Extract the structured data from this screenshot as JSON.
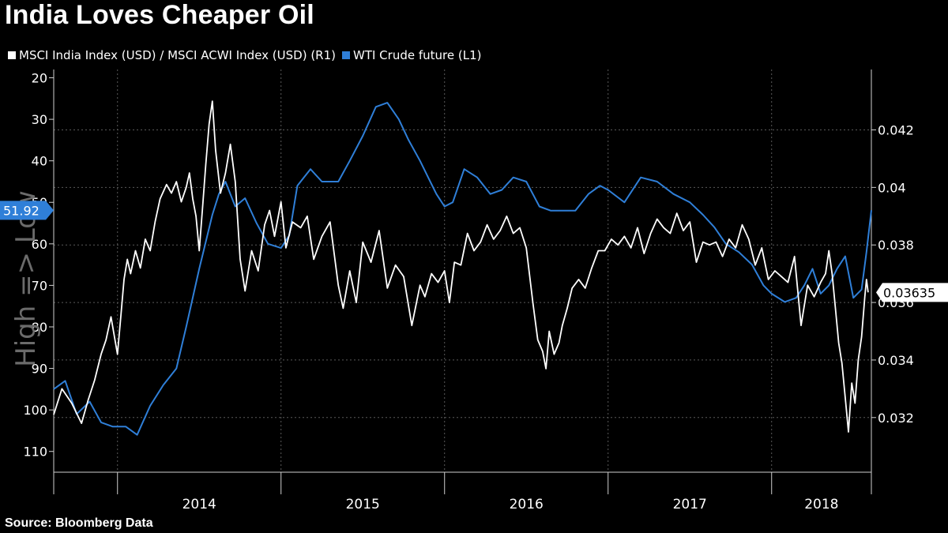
{
  "title": "India Loves Cheaper Oil",
  "source": "Source:  Bloomberg Data",
  "legend": [
    {
      "label": "MSCI India Index (USD) / MSCI ACWI Index (USD) (R1)",
      "color": "#ffffff"
    },
    {
      "label": "WTI Crude future (L1)",
      "color": "#2f7fd8"
    }
  ],
  "chart_data": {
    "type": "line",
    "title": "India Loves Cheaper Oil",
    "xlabel": "",
    "ylabel_left": "High => Low",
    "x_tick_labels": [
      "2014",
      "2015",
      "2016",
      "2017",
      "2018"
    ],
    "x_range": [
      2013.61,
      2018.61
    ],
    "left_axis": {
      "ticks": [
        "20",
        "30",
        "40",
        "50",
        "60",
        "70",
        "80",
        "90",
        "100",
        "110"
      ],
      "tick_values": [
        20,
        30,
        40,
        50,
        60,
        70,
        80,
        90,
        100,
        110
      ],
      "range": [
        18,
        115
      ],
      "inverted": true
    },
    "right_axis": {
      "ticks": [
        "0.032",
        "0.034",
        "0.036",
        "0.038",
        "0.04",
        "0.042"
      ],
      "tick_values": [
        0.032,
        0.034,
        0.036,
        0.038,
        0.04,
        0.042
      ],
      "range": [
        0.0301,
        0.0441
      ]
    },
    "last_value_labels": {
      "left": "51.92",
      "right": "0.03635"
    },
    "grid": true,
    "series": [
      {
        "name": "WTI Crude future (L1)",
        "axis": "left",
        "color": "#2f7fd8",
        "x": [
          2013.61,
          2013.68,
          2013.75,
          2013.83,
          2013.9,
          2013.97,
          2014.05,
          2014.12,
          2014.2,
          2014.28,
          2014.36,
          2014.42,
          2014.5,
          2014.58,
          2014.62,
          2014.66,
          2014.72,
          2014.78,
          2014.85,
          2014.92,
          2015.0,
          2015.05,
          2015.1,
          2015.18,
          2015.25,
          2015.3,
          2015.35,
          2015.42,
          2015.5,
          2015.58,
          2015.65,
          2015.72,
          2015.78,
          2015.85,
          2015.9,
          2015.95,
          2016.0,
          2016.05,
          2016.12,
          2016.2,
          2016.28,
          2016.35,
          2016.42,
          2016.5,
          2016.58,
          2016.65,
          2016.72,
          2016.8,
          2016.88,
          2016.95,
          2017.0,
          2017.1,
          2017.2,
          2017.3,
          2017.4,
          2017.5,
          2017.58,
          2017.65,
          2017.72,
          2017.8,
          2017.88,
          2017.95,
          2018.0,
          2018.08,
          2018.15,
          2018.2,
          2018.25,
          2018.3,
          2018.35,
          2018.4,
          2018.45,
          2018.5,
          2018.55,
          2018.58,
          2018.61
        ],
        "y": [
          95,
          93,
          101,
          98,
          103,
          104,
          104,
          106,
          99,
          94,
          90,
          80,
          66,
          53,
          48,
          45,
          51,
          49,
          55,
          60,
          61,
          58,
          46,
          42,
          45,
          45,
          45,
          40,
          34,
          27,
          26,
          30,
          35,
          40,
          44,
          48,
          51,
          50,
          42,
          44,
          48,
          47,
          44,
          45,
          51,
          52,
          52,
          52,
          48,
          46,
          47,
          50,
          44,
          45,
          48,
          50,
          53,
          56,
          60,
          62,
          65,
          70,
          72,
          74,
          73,
          70,
          66,
          72,
          70,
          66,
          63,
          73,
          71,
          62,
          51.92
        ]
      },
      {
        "name": "MSCI India Index (USD) / MSCI ACWI Index (USD) (R1)",
        "axis": "right",
        "color": "#ffffff",
        "x": [
          2013.61,
          2013.66,
          2013.72,
          2013.78,
          2013.82,
          2013.86,
          2013.9,
          2013.93,
          2013.96,
          2014.0,
          2014.02,
          2014.04,
          2014.06,
          2014.08,
          2014.11,
          2014.14,
          2014.17,
          2014.2,
          2014.23,
          2014.26,
          2014.3,
          2014.33,
          2014.36,
          2014.39,
          2014.42,
          2014.44,
          2014.46,
          2014.48,
          2014.5,
          2014.52,
          2014.54,
          2014.56,
          2014.58,
          2014.6,
          2014.63,
          2014.66,
          2014.69,
          2014.72,
          2014.75,
          2014.78,
          2014.82,
          2014.86,
          2014.9,
          2014.93,
          2014.96,
          2015.0,
          2015.03,
          2015.07,
          2015.12,
          2015.16,
          2015.2,
          2015.25,
          2015.3,
          2015.35,
          2015.38,
          2015.42,
          2015.46,
          2015.5,
          2015.55,
          2015.6,
          2015.65,
          2015.7,
          2015.75,
          2015.8,
          2015.85,
          2015.88,
          2015.92,
          2015.96,
          2016.0,
          2016.03,
          2016.06,
          2016.1,
          2016.14,
          2016.18,
          2016.22,
          2016.26,
          2016.3,
          2016.34,
          2016.38,
          2016.42,
          2016.46,
          2016.5,
          2016.54,
          2016.57,
          2016.6,
          2016.62,
          2016.64,
          2016.67,
          2016.7,
          2016.72,
          2016.75,
          2016.78,
          2016.82,
          2016.86,
          2016.9,
          2016.94,
          2016.98,
          2017.02,
          2017.06,
          2017.1,
          2017.14,
          2017.18,
          2017.22,
          2017.26,
          2017.3,
          2017.34,
          2017.38,
          2017.42,
          2017.46,
          2017.5,
          2017.54,
          2017.58,
          2017.62,
          2017.66,
          2017.7,
          2017.74,
          2017.78,
          2017.82,
          2017.86,
          2017.9,
          2017.94,
          2017.98,
          2018.02,
          2018.06,
          2018.1,
          2018.14,
          2018.18,
          2018.22,
          2018.26,
          2018.3,
          2018.33,
          2018.35,
          2018.37,
          2018.39,
          2018.41,
          2018.43,
          2018.45,
          2018.47,
          2018.49,
          2018.51,
          2018.53,
          2018.55,
          2018.57,
          2018.58,
          2018.59
        ],
        "y": [
          0.0321,
          0.033,
          0.0325,
          0.0318,
          0.0326,
          0.0333,
          0.0342,
          0.0347,
          0.0355,
          0.0342,
          0.0355,
          0.0368,
          0.0375,
          0.037,
          0.0378,
          0.0372,
          0.0382,
          0.0378,
          0.0388,
          0.0396,
          0.0401,
          0.0398,
          0.0402,
          0.0395,
          0.04,
          0.0405,
          0.0396,
          0.039,
          0.0378,
          0.0393,
          0.0408,
          0.0422,
          0.043,
          0.0413,
          0.0398,
          0.0405,
          0.0415,
          0.0402,
          0.0375,
          0.0364,
          0.0378,
          0.0371,
          0.0387,
          0.0392,
          0.0383,
          0.0395,
          0.0379,
          0.0388,
          0.0386,
          0.039,
          0.0375,
          0.0383,
          0.0388,
          0.0366,
          0.0358,
          0.0371,
          0.036,
          0.0381,
          0.0374,
          0.0385,
          0.0365,
          0.0373,
          0.0369,
          0.0352,
          0.0366,
          0.0362,
          0.037,
          0.0367,
          0.0371,
          0.036,
          0.0374,
          0.0373,
          0.0384,
          0.0378,
          0.0381,
          0.0387,
          0.0382,
          0.0385,
          0.039,
          0.0384,
          0.0386,
          0.0379,
          0.036,
          0.0347,
          0.0343,
          0.0337,
          0.035,
          0.0342,
          0.0346,
          0.0352,
          0.0358,
          0.0365,
          0.0368,
          0.0365,
          0.0372,
          0.0378,
          0.0378,
          0.0382,
          0.038,
          0.0383,
          0.0379,
          0.0386,
          0.0377,
          0.0384,
          0.0389,
          0.0386,
          0.0384,
          0.0391,
          0.0385,
          0.0388,
          0.0374,
          0.0381,
          0.038,
          0.0381,
          0.0376,
          0.0382,
          0.0379,
          0.0387,
          0.0382,
          0.0373,
          0.0379,
          0.0368,
          0.0371,
          0.0369,
          0.0367,
          0.0376,
          0.0352,
          0.0366,
          0.0362,
          0.0367,
          0.037,
          0.0378,
          0.037,
          0.0358,
          0.0346,
          0.0339,
          0.0327,
          0.0315,
          0.0332,
          0.0325,
          0.034,
          0.0348,
          0.0362,
          0.0368,
          0.03635
        ]
      }
    ]
  }
}
